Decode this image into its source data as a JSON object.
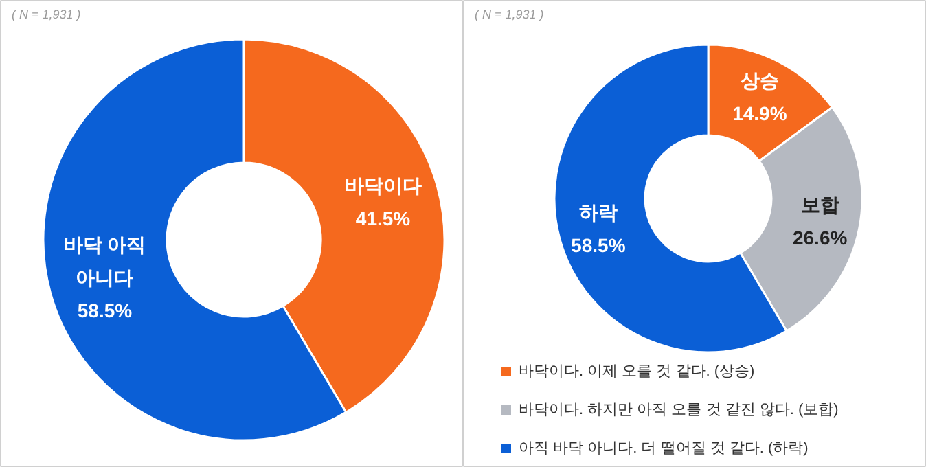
{
  "chart_data": [
    {
      "type": "donut",
      "annotations": [
        "( N = 1,931 )"
      ],
      "categories": [
        "바닥이다",
        "바닥 아직\n아니다"
      ],
      "values": [
        41.5,
        58.5
      ],
      "colors": [
        "#f5691e",
        "#0b5fd6"
      ],
      "value_labels": [
        "41.5%",
        "58.5%"
      ],
      "legend": false
    },
    {
      "type": "donut",
      "annotations": [
        "( N = 1,931 )"
      ],
      "categories": [
        "바닥이다. 이제 오를 것 같다. (상승)",
        "바닥이다. 하지만 아직 오를 것 같진 않다. (보합)",
        "아직 바닥 아니다. 더 떨어질 것 같다. (하락)"
      ],
      "values": [
        14.9,
        26.6,
        58.5
      ],
      "colors": [
        "#f5691e",
        "#b5b9c1",
        "#0b5fd6"
      ],
      "value_labels": [
        "상승\n14.9%",
        "보합\n26.6%",
        "하락\n58.5%"
      ],
      "legend": "bottom"
    }
  ]
}
